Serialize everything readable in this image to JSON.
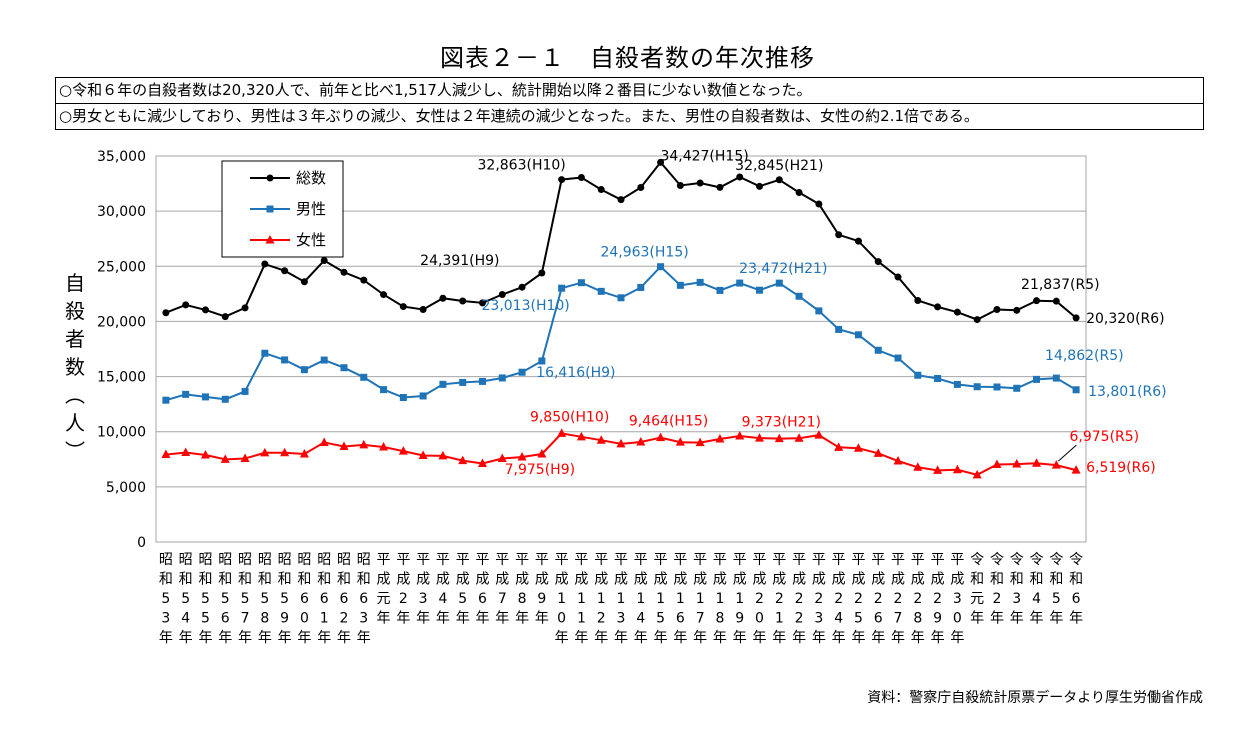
{
  "title": "図表２－１　自殺者数の年次推移",
  "notes": [
    "○令和６年の自殺者数は20,320人で、前年と比べ1,517人減少し、統計開始以降２番目に少ない数値となった。",
    "○男女ともに減少しており、男性は３年ぶりの減少、女性は２年連続の減少となった。また、男性の自殺者数は、女性の約2.1倍である。"
  ],
  "source": "資料：警察庁自殺統計原票データより厚生労働省作成",
  "chart_data": {
    "type": "line",
    "title": "図表２－１　自殺者数の年次推移",
    "ylabel": "自殺者数（人）",
    "ylim": [
      0,
      35000
    ],
    "yticks": [
      0,
      5000,
      10000,
      15000,
      20000,
      25000,
      30000,
      35000
    ],
    "ytick_labels": [
      "0",
      "5,000",
      "10,000",
      "15,000",
      "20,000",
      "25,000",
      "30,000",
      "35,000"
    ],
    "grid": true,
    "legend_position": "top-left",
    "categories": [
      "昭和53年",
      "昭和54年",
      "昭和55年",
      "昭和56年",
      "昭和57年",
      "昭和58年",
      "昭和59年",
      "昭和60年",
      "昭和61年",
      "昭和62年",
      "昭和63年",
      "平成元年",
      "平成2年",
      "平成3年",
      "平成4年",
      "平成5年",
      "平成6年",
      "平成7年",
      "平成8年",
      "平成9年",
      "平成10年",
      "平成11年",
      "平成12年",
      "平成13年",
      "平成14年",
      "平成15年",
      "平成16年",
      "平成17年",
      "平成18年",
      "平成19年",
      "平成20年",
      "平成21年",
      "平成22年",
      "平成23年",
      "平成24年",
      "平成25年",
      "平成26年",
      "平成27年",
      "平成28年",
      "平成29年",
      "平成30年",
      "令和元年",
      "令和2年",
      "令和3年",
      "令和4年",
      "令和5年",
      "令和6年"
    ],
    "xtick_labels": [
      [
        "昭",
        "和",
        "5",
        "3",
        "年"
      ],
      [
        "昭",
        "和",
        "5",
        "4",
        "年"
      ],
      [
        "昭",
        "和",
        "5",
        "5",
        "年"
      ],
      [
        "昭",
        "和",
        "5",
        "6",
        "年"
      ],
      [
        "昭",
        "和",
        "5",
        "7",
        "年"
      ],
      [
        "昭",
        "和",
        "5",
        "8",
        "年"
      ],
      [
        "昭",
        "和",
        "5",
        "9",
        "年"
      ],
      [
        "昭",
        "和",
        "6",
        "0",
        "年"
      ],
      [
        "昭",
        "和",
        "6",
        "1",
        "年"
      ],
      [
        "昭",
        "和",
        "6",
        "2",
        "年"
      ],
      [
        "昭",
        "和",
        "6",
        "3",
        "年"
      ],
      [
        "平",
        "成",
        "元",
        "年"
      ],
      [
        "平",
        "成",
        "2",
        "年"
      ],
      [
        "平",
        "成",
        "3",
        "年"
      ],
      [
        "平",
        "成",
        "4",
        "年"
      ],
      [
        "平",
        "成",
        "5",
        "年"
      ],
      [
        "平",
        "成",
        "6",
        "年"
      ],
      [
        "平",
        "成",
        "7",
        "年"
      ],
      [
        "平",
        "成",
        "8",
        "年"
      ],
      [
        "平",
        "成",
        "9",
        "年"
      ],
      [
        "平",
        "成",
        "1",
        "0",
        "年"
      ],
      [
        "平",
        "成",
        "1",
        "1",
        "年"
      ],
      [
        "平",
        "成",
        "1",
        "2",
        "年"
      ],
      [
        "平",
        "成",
        "1",
        "3",
        "年"
      ],
      [
        "平",
        "成",
        "1",
        "4",
        "年"
      ],
      [
        "平",
        "成",
        "1",
        "5",
        "年"
      ],
      [
        "平",
        "成",
        "1",
        "6",
        "年"
      ],
      [
        "平",
        "成",
        "1",
        "7",
        "年"
      ],
      [
        "平",
        "成",
        "1",
        "8",
        "年"
      ],
      [
        "平",
        "成",
        "1",
        "9",
        "年"
      ],
      [
        "平",
        "成",
        "2",
        "0",
        "年"
      ],
      [
        "平",
        "成",
        "2",
        "1",
        "年"
      ],
      [
        "平",
        "成",
        "2",
        "2",
        "年"
      ],
      [
        "平",
        "成",
        "2",
        "3",
        "年"
      ],
      [
        "平",
        "成",
        "2",
        "4",
        "年"
      ],
      [
        "平",
        "成",
        "2",
        "5",
        "年"
      ],
      [
        "平",
        "成",
        "2",
        "6",
        "年"
      ],
      [
        "平",
        "成",
        "2",
        "7",
        "年"
      ],
      [
        "平",
        "成",
        "2",
        "8",
        "年"
      ],
      [
        "平",
        "成",
        "2",
        "9",
        "年"
      ],
      [
        "平",
        "成",
        "3",
        "0",
        "年"
      ],
      [
        "令",
        "和",
        "元",
        "年"
      ],
      [
        "令",
        "和",
        "2",
        "年"
      ],
      [
        "令",
        "和",
        "3",
        "年"
      ],
      [
        "令",
        "和",
        "4",
        "年"
      ],
      [
        "令",
        "和",
        "5",
        "年"
      ],
      [
        "令",
        "和",
        "6",
        "年"
      ]
    ],
    "series": [
      {
        "name": "総数",
        "color": "#000000",
        "marker": "circle",
        "values": [
          20788,
          21503,
          21048,
          20434,
          21228,
          25202,
          24596,
          23599,
          25524,
          24460,
          23742,
          22436,
          21346,
          21084,
          22104,
          21851,
          21679,
          22445,
          23104,
          24391,
          32863,
          33048,
          31957,
          31042,
          32143,
          34427,
          32325,
          32552,
          32155,
          33093,
          32249,
          32845,
          31690,
          30651,
          27858,
          27283,
          25427,
          24025,
          21897,
          21321,
          20840,
          20169,
          21081,
          21007,
          21881,
          21837,
          20320
        ]
      },
      {
        "name": "男性",
        "color": "#1f73b7",
        "marker": "square",
        "values": [
          12859,
          13386,
          13155,
          12942,
          13654,
          17116,
          16508,
          15624,
          16497,
          15802,
          14934,
          13818,
          13102,
          13242,
          14296,
          14468,
          14560,
          14874,
          15393,
          16416,
          23013,
          23512,
          22727,
          22144,
          23080,
          24963,
          23272,
          23540,
          22813,
          23478,
          22831,
          23472,
          22283,
          20955,
          19273,
          18787,
          17386,
          16681,
          15121,
          14826,
          14290,
          14078,
          14055,
          13939,
          14746,
          14862,
          13801
        ]
      },
      {
        "name": "女性",
        "color": "#ff0000",
        "marker": "triangle",
        "values": [
          7929,
          8117,
          7893,
          7492,
          7574,
          8086,
          8088,
          7975,
          9027,
          8658,
          8808,
          8618,
          8244,
          7842,
          7808,
          7383,
          7119,
          7571,
          7711,
          7975,
          9850,
          9536,
          9230,
          8898,
          9063,
          9464,
          9053,
          9012,
          9342,
          9615,
          9418,
          9373,
          9407,
          9696,
          8585,
          8496,
          8041,
          7344,
          6776,
          6495,
          6550,
          6091,
          7026,
          7068,
          7135,
          6975,
          6519
        ]
      }
    ],
    "annotations": [
      {
        "series": 0,
        "index": 19,
        "text": "24,391(H9)"
      },
      {
        "series": 0,
        "index": 20,
        "text": "32,863(H10)"
      },
      {
        "series": 0,
        "index": 25,
        "text": "34,427(H15)"
      },
      {
        "series": 0,
        "index": 31,
        "text": "32,845(H21)"
      },
      {
        "series": 0,
        "index": 45,
        "text": "21,837(R5)"
      },
      {
        "series": 0,
        "index": 46,
        "text": "20,320(R6)"
      },
      {
        "series": 1,
        "index": 19,
        "text": "16,416(H9)"
      },
      {
        "series": 1,
        "index": 20,
        "text": "23,013(H10)"
      },
      {
        "series": 1,
        "index": 25,
        "text": "24,963(H15)"
      },
      {
        "series": 1,
        "index": 31,
        "text": "23,472(H21)"
      },
      {
        "series": 1,
        "index": 45,
        "text": "14,862(R5)"
      },
      {
        "series": 1,
        "index": 46,
        "text": "13,801(R6)"
      },
      {
        "series": 2,
        "index": 19,
        "text": "7,975(H9)"
      },
      {
        "series": 2,
        "index": 20,
        "text": "9,850(H10)"
      },
      {
        "series": 2,
        "index": 25,
        "text": "9,464(H15)"
      },
      {
        "series": 2,
        "index": 31,
        "text": "9,373(H21)"
      },
      {
        "series": 2,
        "index": 45,
        "text": "6,975(R5)"
      },
      {
        "series": 2,
        "index": 46,
        "text": "6,519(R6)"
      }
    ]
  }
}
